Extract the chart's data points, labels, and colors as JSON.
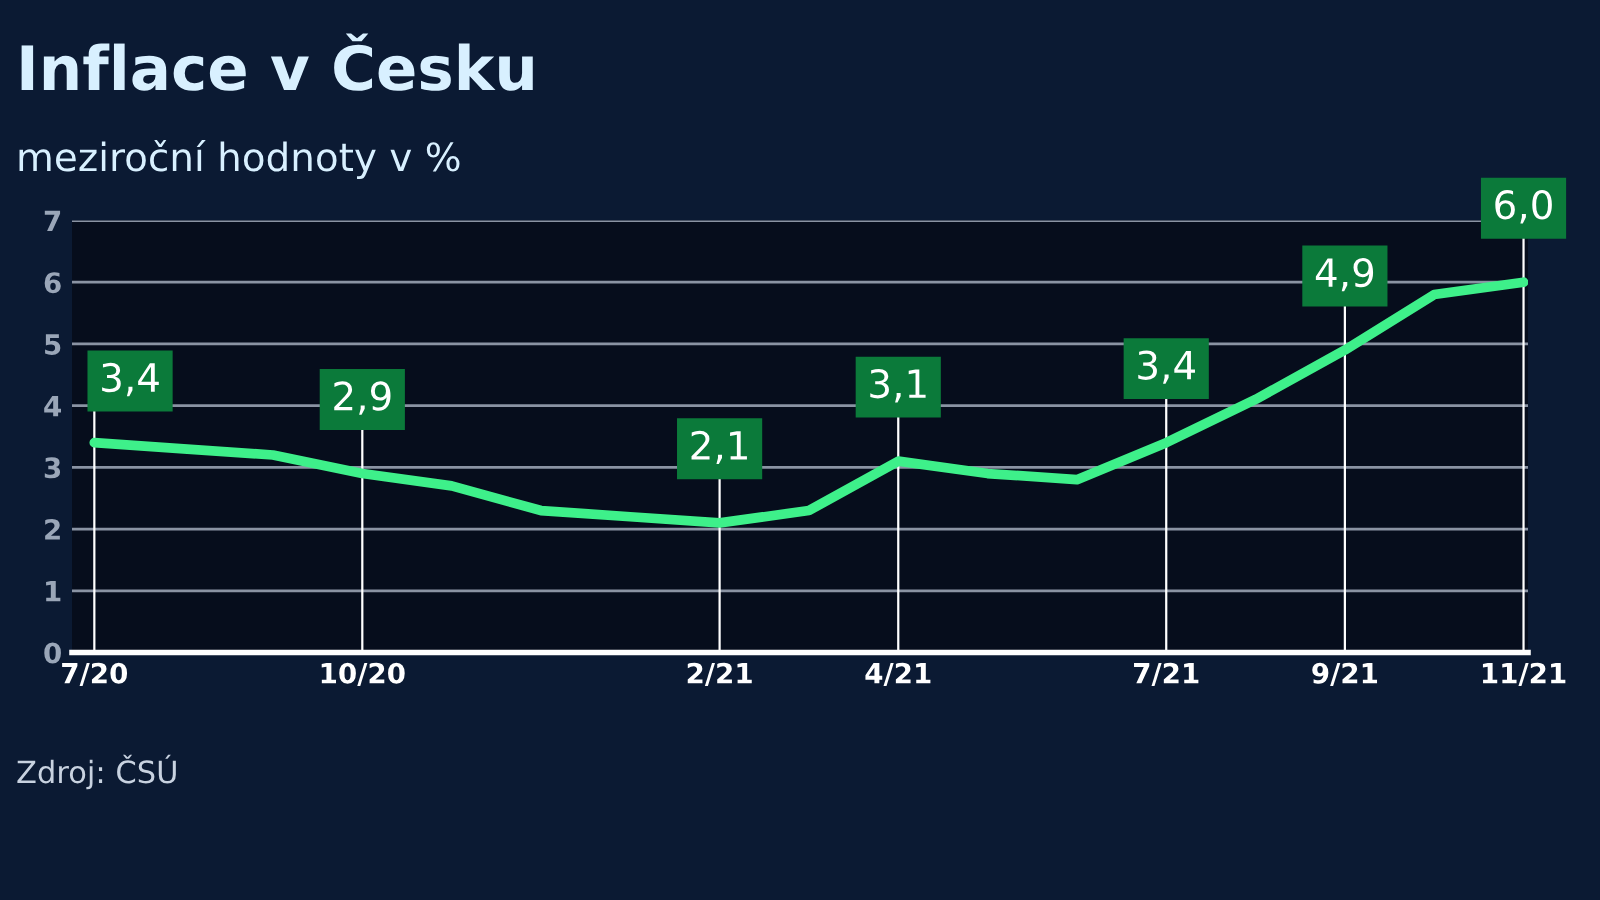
{
  "chart_data": {
    "type": "line",
    "title": "Inflace v Česku",
    "subtitle": "meziroční hodnoty v %",
    "categories": [
      "7/20",
      null,
      null,
      "10/20",
      null,
      null,
      null,
      "2/21",
      null,
      "4/21",
      null,
      null,
      "7/21",
      null,
      "9/21",
      null,
      "11/21"
    ],
    "series": [
      {
        "color": "#3ef08a",
        "values": [
          3.4,
          3.3,
          3.2,
          2.9,
          2.7,
          2.3,
          2.2,
          2.1,
          2.3,
          3.1,
          2.9,
          2.8,
          3.4,
          4.1,
          4.9,
          5.8,
          6.0
        ],
        "value_labels": [
          "3,4",
          null,
          null,
          "2,9",
          null,
          null,
          null,
          "2,1",
          null,
          "3,1",
          null,
          null,
          "3,4",
          null,
          "4,9",
          null,
          "6,0"
        ]
      }
    ],
    "ylim": [
      0,
      7
    ],
    "yticks": [
      0,
      1,
      2,
      3,
      4,
      5,
      6,
      7
    ],
    "grid": "y",
    "marker": "none",
    "line_style": "solid",
    "annotations": [
      "Zdroj: ČSÚ"
    ]
  }
}
